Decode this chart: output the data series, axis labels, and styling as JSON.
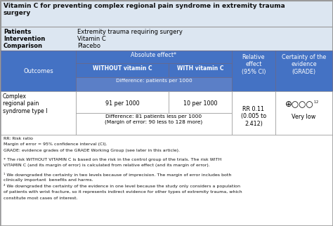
{
  "title": "Vitamin C for preventing complex regional pain syndrome in extremity trauma\nsurgery",
  "patients_value": "Extremity trauma requiring surgery",
  "intervention_value": "Vitamin C",
  "comparison_value": "Placebo",
  "title_bg": "#dce6f1",
  "info_bg": "#dce6f1",
  "header_blue": "#4472c4",
  "diff_blue": "#5b7fc7",
  "white": "#ffffff",
  "outer_bg": "#dce6f1",
  "footnote_lines": [
    "RR: Risk ratio",
    "Margin of error = 95% confidence interval (CI).",
    "GRADE: evidence grades of the GRADE Working Group (see later in this article).",
    "",
    "* The risk WITHOUT VITAMIN C is based on the risk in the control group of the trials. The risk WITH",
    "VITAMIN C (and its margin of error) is calculated from relative effect (and its margin of error).",
    "",
    "¹ We downgraded the certainty in two levels because of imprecision. The margin of error includes both",
    "clinically important  benefits and harms.",
    "² We downgraded the certainty of the evidence in one level because the study only considers a population",
    "of patients with wrist fracture, so it represents indirect evidence for other types of extremity trauma, which",
    "constitute most cases of interest."
  ]
}
